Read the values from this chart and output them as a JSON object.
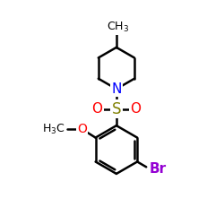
{
  "background_color": "#ffffff",
  "atom_colors": {
    "N": "#0000ff",
    "O": "#ff0000",
    "S": "#808000",
    "Br": "#9400d3",
    "C": "#000000",
    "H": "#000000"
  },
  "font_size_atom": 11,
  "font_size_label": 9,
  "line_width": 1.8,
  "figsize": [
    2.5,
    2.5
  ],
  "dpi": 100,
  "xlim": [
    0,
    10
  ],
  "ylim": [
    0,
    10
  ]
}
